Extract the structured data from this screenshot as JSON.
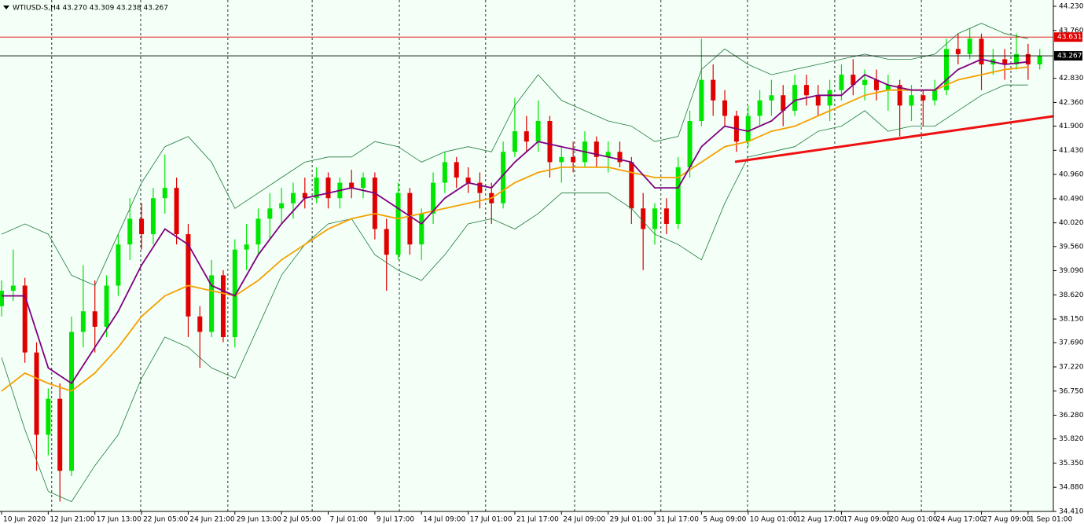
{
  "chart_data": {
    "type": "candlestick",
    "title": "WTIUSD-S,H4  43.270 43.309 43.238 43.267",
    "xlim": [
      -0.54,
      360.66
    ],
    "ylim": [
      34.41,
      44.352
    ],
    "yticks": [
      {
        "value": 44.23,
        "label": "44.230"
      },
      {
        "value": 43.76,
        "label": "43.760"
      },
      {
        "value": 42.83,
        "label": "42.830"
      },
      {
        "value": 42.36,
        "label": "42.360"
      },
      {
        "value": 41.9,
        "label": "41.900"
      },
      {
        "value": 41.43,
        "label": "41.430"
      },
      {
        "value": 40.96,
        "label": "40.960"
      },
      {
        "value": 40.49,
        "label": "40.490"
      },
      {
        "value": 40.02,
        "label": "40.020"
      },
      {
        "value": 39.56,
        "label": "39.560"
      },
      {
        "value": 39.09,
        "label": "39.090"
      },
      {
        "value": 38.62,
        "label": "38.620"
      },
      {
        "value": 38.15,
        "label": "38.150"
      },
      {
        "value": 37.69,
        "label": "37.690"
      },
      {
        "value": 37.22,
        "label": "37.220"
      },
      {
        "value": 36.75,
        "label": "36.750"
      },
      {
        "value": 36.28,
        "label": "36.280"
      },
      {
        "value": 35.82,
        "label": "35.820"
      },
      {
        "value": 35.35,
        "label": "35.350"
      },
      {
        "value": 34.88,
        "label": "34.880"
      },
      {
        "value": 34.41,
        "label": "34.410"
      }
    ],
    "xticks": [
      {
        "value": 0,
        "label": "10 Jun 2020"
      },
      {
        "value": 16,
        "label": "12 Jun 21:00"
      },
      {
        "value": 32,
        "label": "17 Jun 13:00"
      },
      {
        "value": 48,
        "label": "22 Jun 05:00"
      },
      {
        "value": 64,
        "label": "24 Jun 21:00"
      },
      {
        "value": 80,
        "label": "29 Jun 13:00"
      },
      {
        "value": 96,
        "label": "2 Jul 05:00"
      },
      {
        "value": 112,
        "label": "7 Jul 01:00"
      },
      {
        "value": 128,
        "label": "9 Jul 17:00"
      },
      {
        "value": 144,
        "label": "14 Jul 09:00"
      },
      {
        "value": 160,
        "label": "17 Jul 01:00"
      },
      {
        "value": 176,
        "label": "21 Jul 17:00"
      },
      {
        "value": 192,
        "label": "24 Jul 09:00"
      },
      {
        "value": 208,
        "label": "29 Jul 01:00"
      },
      {
        "value": 224,
        "label": "31 Jul 17:00"
      },
      {
        "value": 240,
        "label": "5 Aug 09:00"
      },
      {
        "value": 256,
        "label": "10 Aug 01:00"
      },
      {
        "value": 272,
        "label": "12 Aug 17:00"
      },
      {
        "value": 288,
        "label": "17 Aug 09:00"
      },
      {
        "value": 304,
        "label": "20 Aug 01:00"
      },
      {
        "value": 320,
        "label": "24 Aug 17:00"
      },
      {
        "value": 336,
        "label": "27 Aug 09:00"
      },
      {
        "value": 352,
        "label": "1 Sep 01:00"
      }
    ],
    "xgrid": [
      17.2,
      47.7,
      77.6,
      106.5,
      136.4,
      166,
      196.5,
      226.1,
      255.8,
      285.7,
      315.4,
      346.1
    ],
    "candles": {
      "up_color": "#00e600",
      "down_color": "#e00000",
      "x": [
        0,
        4,
        8,
        12,
        16,
        20,
        24,
        28,
        32,
        36,
        40,
        44,
        48,
        52,
        56,
        60,
        64,
        68,
        72,
        76,
        80,
        84,
        88,
        92,
        96,
        100,
        104,
        108,
        112,
        116,
        120,
        124,
        128,
        132,
        136,
        140,
        144,
        148,
        152,
        156,
        160,
        164,
        168,
        172,
        176,
        180,
        184,
        188,
        192,
        196,
        200,
        204,
        208,
        212,
        216,
        220,
        224,
        228,
        232,
        236,
        240,
        244,
        248,
        252,
        256,
        260,
        264,
        268,
        272,
        276,
        280,
        284,
        288,
        292,
        296,
        300,
        304,
        308,
        312,
        316,
        320,
        324,
        328,
        332,
        336,
        340,
        344,
        348,
        352,
        356
      ],
      "open": [
        38.4,
        38.7,
        38.8,
        37.5,
        35.9,
        36.6,
        35.2,
        37.9,
        38.3,
        38.0,
        38.8,
        39.6,
        40.1,
        39.8,
        40.5,
        40.7,
        39.8,
        38.2,
        37.9,
        39.0,
        37.8,
        39.5,
        39.6,
        40.1,
        40.3,
        40.4,
        40.6,
        40.5,
        40.9,
        40.5,
        40.8,
        40.7,
        40.9,
        39.9,
        39.4,
        40.6,
        39.6,
        40.2,
        40.8,
        41.2,
        40.9,
        40.8,
        40.6,
        40.4,
        41.4,
        41.8,
        41.6,
        42.0,
        41.2,
        41.3,
        41.2,
        41.6,
        41.3,
        41.4,
        41.2,
        40.3,
        39.9,
        40.3,
        40.0,
        41.1,
        42.0,
        42.8,
        42.4,
        42.1,
        41.6,
        42.1,
        42.4,
        42.5,
        42.2,
        42.7,
        42.5,
        42.3,
        42.6,
        42.9,
        42.7,
        42.8,
        42.6,
        42.7,
        42.3,
        42.5,
        42.4,
        42.6,
        43.4,
        43.3,
        43.6,
        43.1,
        43.2,
        43.1,
        43.3,
        43.1
      ],
      "high": [
        38.9,
        39.5,
        38.95,
        37.7,
        36.8,
        36.9,
        38.2,
        39.2,
        38.9,
        39.0,
        39.8,
        40.5,
        40.4,
        40.7,
        41.35,
        40.9,
        40.0,
        38.4,
        39.3,
        39.1,
        39.7,
        40.0,
        40.3,
        40.6,
        40.7,
        40.8,
        40.9,
        41.1,
        41.0,
        40.9,
        41.05,
        41.0,
        41.0,
        40.1,
        40.8,
        40.7,
        40.3,
        41.0,
        41.4,
        41.3,
        41.1,
        41.0,
        40.8,
        41.6,
        42.45,
        42.1,
        42.4,
        42.1,
        41.5,
        41.6,
        41.8,
        41.7,
        41.6,
        41.6,
        41.3,
        40.6,
        40.4,
        40.5,
        41.3,
        42.2,
        43.6,
        43.1,
        42.6,
        42.2,
        42.3,
        42.6,
        42.8,
        42.7,
        42.9,
        42.9,
        42.7,
        42.8,
        43.1,
        43.2,
        43.0,
        43.0,
        42.9,
        42.8,
        42.7,
        42.6,
        42.8,
        43.6,
        43.7,
        43.8,
        43.7,
        43.4,
        43.4,
        43.7,
        43.5,
        43.4
      ],
      "low": [
        38.2,
        38.5,
        37.3,
        35.2,
        35.5,
        34.6,
        35.1,
        37.6,
        37.5,
        37.8,
        38.6,
        39.3,
        39.5,
        39.6,
        40.2,
        39.6,
        37.8,
        37.2,
        37.8,
        37.7,
        37.6,
        39.1,
        39.4,
        39.7,
        40.0,
        40.1,
        40.3,
        40.4,
        40.3,
        40.3,
        40.5,
        40.5,
        39.7,
        38.7,
        39.3,
        39.4,
        39.3,
        40.0,
        40.6,
        40.7,
        40.6,
        40.3,
        40.0,
        40.3,
        41.3,
        41.4,
        41.4,
        40.9,
        40.8,
        41.0,
        41.1,
        41.1,
        41.0,
        41.1,
        40.0,
        39.1,
        39.6,
        39.8,
        39.9,
        40.9,
        41.9,
        42.1,
        41.9,
        41.4,
        41.5,
        41.9,
        42.1,
        41.9,
        42.1,
        42.3,
        42.1,
        42.0,
        42.4,
        42.5,
        42.4,
        42.4,
        42.2,
        41.7,
        42.0,
        41.9,
        42.3,
        42.5,
        43.1,
        43.2,
        42.6,
        42.9,
        42.8,
        43.0,
        42.8,
        43.0
      ],
      "close": [
        38.7,
        38.8,
        37.5,
        35.9,
        36.6,
        35.2,
        37.9,
        38.3,
        38.0,
        38.8,
        39.6,
        40.1,
        39.8,
        40.5,
        40.7,
        39.8,
        38.2,
        37.9,
        39.0,
        37.8,
        39.5,
        39.6,
        40.1,
        40.3,
        40.4,
        40.6,
        40.5,
        40.9,
        40.5,
        40.8,
        40.7,
        40.9,
        39.9,
        39.4,
        40.6,
        39.6,
        40.2,
        40.8,
        41.2,
        40.9,
        40.8,
        40.6,
        40.4,
        41.4,
        41.8,
        41.6,
        42.0,
        41.2,
        41.3,
        41.2,
        41.6,
        41.3,
        41.4,
        41.2,
        40.3,
        39.9,
        40.3,
        40.0,
        41.1,
        42.0,
        42.8,
        42.4,
        42.1,
        41.6,
        42.1,
        42.4,
        42.5,
        42.2,
        42.7,
        42.5,
        42.3,
        42.6,
        42.9,
        42.7,
        42.8,
        42.6,
        42.7,
        42.3,
        42.5,
        42.4,
        42.6,
        43.4,
        43.3,
        43.6,
        43.1,
        43.2,
        43.1,
        43.3,
        43.1,
        43.267
      ]
    },
    "lines": [
      {
        "color": "#1f7a3a",
        "width": 0.8,
        "x": [
          0,
          8,
          16,
          24,
          32,
          40,
          48,
          56,
          64,
          72,
          80,
          88,
          96,
          104,
          112,
          120,
          128,
          136,
          144,
          152,
          160,
          168,
          176,
          184,
          192,
          200,
          208,
          216,
          224,
          232,
          240,
          248,
          256,
          264,
          272,
          280,
          288,
          296,
          304,
          312,
          320,
          328,
          336,
          344,
          352
        ],
        "values": [
          39.8,
          40.0,
          39.8,
          39.0,
          38.8,
          39.8,
          40.8,
          41.5,
          41.7,
          41.2,
          40.3,
          40.6,
          40.9,
          41.2,
          41.3,
          41.3,
          41.6,
          41.5,
          41.2,
          41.4,
          41.5,
          41.4,
          42.3,
          42.9,
          42.4,
          42.2,
          42.0,
          41.9,
          41.6,
          41.7,
          43.0,
          43.4,
          43.1,
          42.9,
          43.0,
          43.1,
          43.2,
          43.3,
          43.2,
          43.2,
          43.3,
          43.7,
          43.9,
          43.7,
          43.6
        ]
      },
      {
        "color": "#1f7a3a",
        "width": 0.8,
        "x": [
          0,
          8,
          16,
          24,
          32,
          40,
          48,
          56,
          64,
          72,
          80,
          88,
          96,
          104,
          112,
          120,
          128,
          136,
          144,
          152,
          160,
          168,
          176,
          184,
          192,
          200,
          208,
          216,
          224,
          232,
          240,
          248,
          256,
          264,
          272,
          280,
          288,
          296,
          304,
          312,
          320,
          328,
          336,
          344,
          352
        ],
        "values": [
          37.4,
          36.0,
          34.8,
          34.6,
          35.3,
          35.9,
          37.0,
          37.8,
          37.6,
          37.2,
          37.0,
          38.0,
          39.0,
          39.6,
          40.0,
          40.1,
          39.4,
          39.1,
          38.9,
          39.4,
          40.0,
          40.1,
          39.9,
          40.2,
          40.6,
          40.6,
          40.6,
          40.3,
          39.8,
          39.6,
          39.3,
          40.4,
          41.3,
          41.4,
          41.5,
          41.8,
          41.9,
          42.2,
          41.8,
          41.9,
          41.9,
          42.2,
          42.5,
          42.7,
          42.7
        ]
      },
      {
        "color": "#f5a000",
        "width": 1.8,
        "x": [
          0,
          8,
          16,
          24,
          32,
          40,
          48,
          56,
          64,
          72,
          80,
          88,
          96,
          104,
          112,
          120,
          128,
          136,
          144,
          152,
          160,
          168,
          176,
          184,
          192,
          200,
          208,
          216,
          224,
          232,
          240,
          248,
          256,
          264,
          272,
          280,
          288,
          296,
          304,
          312,
          320,
          328,
          336,
          344,
          352
        ],
        "values": [
          36.75,
          37.1,
          36.9,
          36.75,
          37.1,
          37.6,
          38.2,
          38.6,
          38.8,
          38.7,
          38.6,
          38.9,
          39.3,
          39.6,
          39.9,
          40.1,
          40.2,
          40.1,
          40.2,
          40.3,
          40.4,
          40.5,
          40.8,
          41.0,
          41.1,
          41.1,
          41.1,
          41.0,
          40.9,
          40.9,
          41.2,
          41.5,
          41.6,
          41.8,
          41.9,
          42.1,
          42.3,
          42.5,
          42.6,
          42.6,
          42.6,
          42.8,
          42.9,
          43.0,
          43.05
        ]
      },
      {
        "color": "#800080",
        "width": 1.8,
        "x": [
          0,
          8,
          16,
          24,
          32,
          40,
          48,
          56,
          64,
          72,
          80,
          88,
          96,
          104,
          112,
          120,
          128,
          136,
          144,
          152,
          160,
          168,
          176,
          184,
          192,
          200,
          208,
          216,
          224,
          232,
          240,
          248,
          256,
          264,
          272,
          280,
          288,
          296,
          304,
          312,
          320,
          328,
          336,
          344,
          352
        ],
        "values": [
          38.6,
          38.6,
          37.2,
          36.9,
          37.6,
          38.3,
          39.2,
          39.9,
          39.6,
          38.8,
          38.6,
          39.4,
          40.0,
          40.5,
          40.6,
          40.7,
          40.6,
          40.3,
          40.0,
          40.5,
          40.8,
          40.7,
          41.2,
          41.6,
          41.5,
          41.4,
          41.3,
          41.2,
          40.7,
          40.7,
          41.5,
          41.9,
          41.8,
          42.0,
          42.4,
          42.5,
          42.5,
          42.9,
          42.7,
          42.6,
          42.6,
          43.0,
          43.2,
          43.1,
          43.15
        ]
      }
    ],
    "hlines": [
      {
        "value": 43.631,
        "color": "#e00000",
        "text_color": "#ffffff"
      },
      {
        "value": 43.267,
        "color": "#000000",
        "text_color": "#ffffff"
      }
    ],
    "trendline": {
      "color": "#ee1111",
      "x": [
        251.5,
        360.6
      ],
      "values": [
        41.206,
        42.092
      ]
    }
  }
}
